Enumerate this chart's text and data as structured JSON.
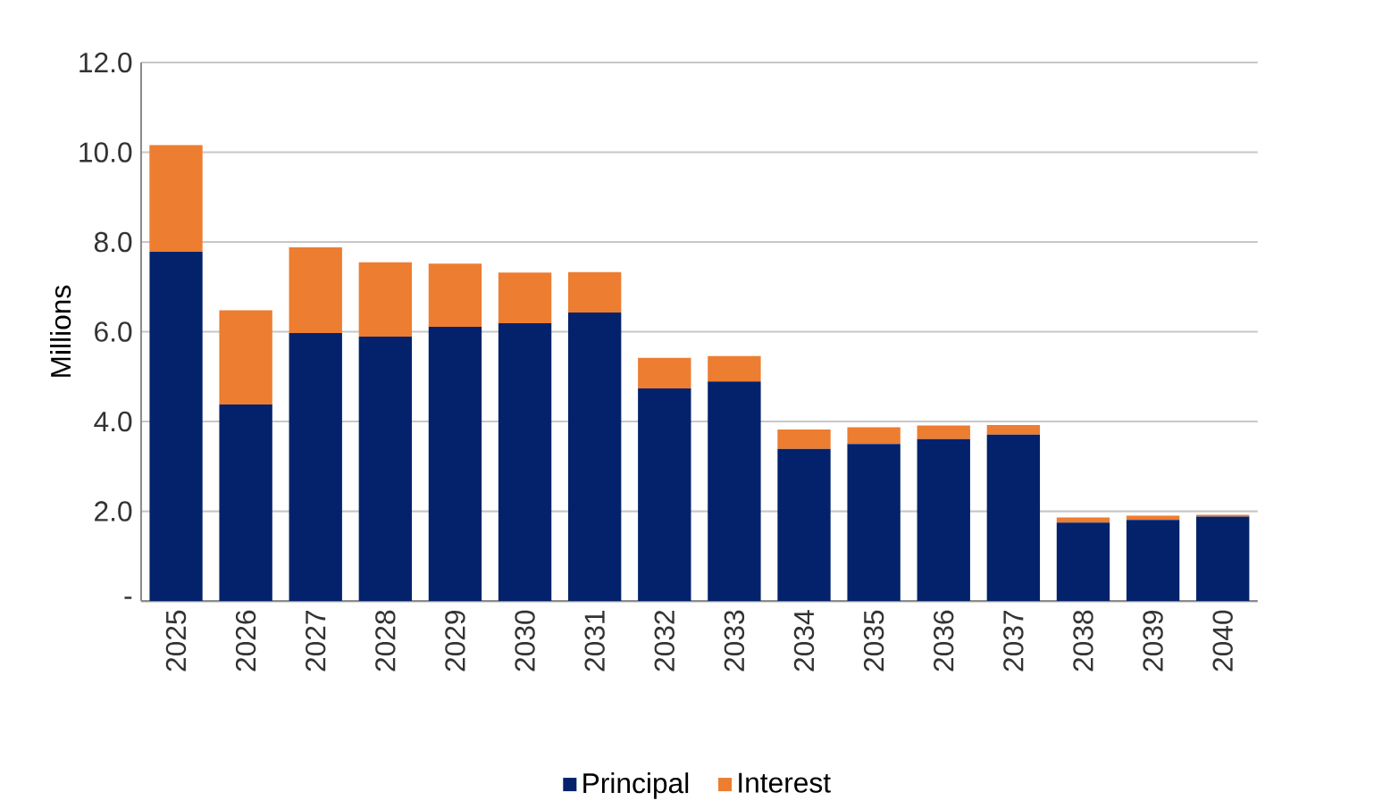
{
  "chart_data": {
    "type": "bar",
    "stacked": true,
    "ylabel": "Millions",
    "categories": [
      "2025",
      "2026",
      "2027",
      "2028",
      "2029",
      "2030",
      "2031",
      "2032",
      "2033",
      "2034",
      "2035",
      "2036",
      "2037",
      "2038",
      "2039",
      "2040"
    ],
    "series": [
      {
        "name": "Principal",
        "color": "#03226b",
        "values": [
          7.78,
          4.38,
          5.97,
          5.89,
          6.11,
          6.19,
          6.43,
          4.74,
          4.89,
          3.39,
          3.5,
          3.61,
          3.71,
          1.75,
          1.81,
          1.88
        ]
      },
      {
        "name": "Interest",
        "color": "#ed7d31",
        "values": [
          2.38,
          2.1,
          1.91,
          1.66,
          1.41,
          1.13,
          0.9,
          0.68,
          0.57,
          0.43,
          0.37,
          0.3,
          0.21,
          0.11,
          0.09,
          0.04
        ]
      }
    ],
    "ylim": [
      0,
      12
    ],
    "yticks": [
      {
        "value": 0,
        "label": "-"
      },
      {
        "value": 2,
        "label": "2.0"
      },
      {
        "value": 4,
        "label": "4.0"
      },
      {
        "value": 6,
        "label": "6.0"
      },
      {
        "value": 8,
        "label": "8.0"
      },
      {
        "value": 10,
        "label": "10.0"
      },
      {
        "value": 12,
        "label": "12.0"
      }
    ],
    "grid": "y",
    "legend": "bottom"
  }
}
